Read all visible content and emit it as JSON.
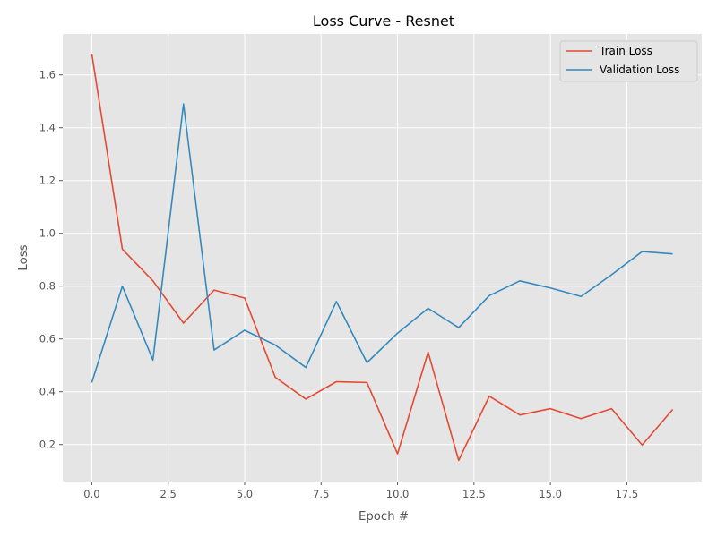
{
  "chart_data": {
    "type": "line",
    "title": "Loss Curve - Resnet",
    "xlabel": "Epoch #",
    "ylabel": "Loss",
    "xlim": [
      -0.95,
      19.95
    ],
    "ylim": [
      0.06,
      1.755
    ],
    "xticks": [
      0.0,
      2.5,
      5.0,
      7.5,
      10.0,
      12.5,
      15.0,
      17.5
    ],
    "xtick_labels": [
      "0.0",
      "2.5",
      "5.0",
      "7.5",
      "10.0",
      "12.5",
      "15.0",
      "17.5"
    ],
    "yticks": [
      0.2,
      0.4,
      0.6,
      0.8,
      1.0,
      1.2,
      1.4,
      1.6
    ],
    "ytick_labels": [
      "0.2",
      "0.4",
      "0.6",
      "0.8",
      "1.0",
      "1.2",
      "1.4",
      "1.6"
    ],
    "grid": true,
    "legend_position": "top-right",
    "x": [
      0,
      1,
      2,
      3,
      4,
      5,
      6,
      7,
      8,
      9,
      10,
      11,
      12,
      13,
      14,
      15,
      16,
      17,
      18,
      19
    ],
    "series": [
      {
        "name": "Train Loss",
        "color": "#e24a33",
        "values": [
          1.68,
          0.94,
          0.82,
          0.66,
          0.785,
          0.755,
          0.455,
          0.372,
          0.438,
          0.435,
          0.165,
          0.55,
          0.14,
          0.383,
          0.312,
          0.336,
          0.298,
          0.336,
          0.198,
          0.333
        ]
      },
      {
        "name": "Validation Loss",
        "color": "#348abd",
        "values": [
          0.435,
          0.8,
          0.52,
          1.49,
          0.558,
          0.633,
          0.577,
          0.492,
          0.742,
          0.51,
          0.622,
          0.716,
          0.643,
          0.764,
          0.82,
          0.793,
          0.761,
          0.843,
          0.931,
          0.922
        ]
      }
    ]
  },
  "style": {
    "plot_background": "#e5e5e5",
    "grid_color": "#ffffff",
    "legend_background": "#e5e5e5"
  }
}
